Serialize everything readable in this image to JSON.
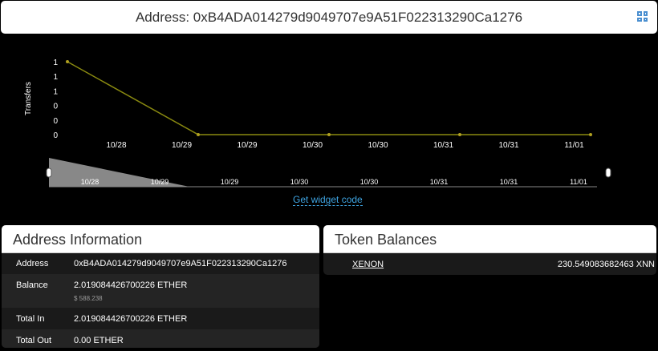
{
  "header": {
    "title": "Address: 0xB4ADA014279d9049707e9A51F022313290Ca1276",
    "qr_icon": "qr-code-icon"
  },
  "chart_data": {
    "type": "line",
    "ylabel": "Transfers",
    "ytick_labels": [
      "0",
      "0",
      "0",
      "1",
      "1",
      "1"
    ],
    "yticks": [
      0,
      0.2,
      0.4,
      0.6,
      0.8,
      1
    ],
    "ylim": [
      0,
      1
    ],
    "points": [
      {
        "x": "10/28",
        "y": 1
      },
      {
        "x": "10/29",
        "y": 0
      },
      {
        "x": "10/30",
        "y": 0
      },
      {
        "x": "10/31",
        "y": 0
      },
      {
        "x": "11/01",
        "y": 0
      }
    ],
    "xtick_labels": [
      "10/28",
      "10/29",
      "10/29",
      "10/30",
      "10/30",
      "10/31",
      "10/31",
      "11/01"
    ],
    "line_color": "#8a8a10",
    "navigator_labels": [
      "10/28",
      "10/29",
      "10/29",
      "10/30",
      "10/30",
      "10/31",
      "10/31",
      "11/01"
    ]
  },
  "widget_link": "Get widget code",
  "address_info": {
    "title": "Address Information",
    "rows": [
      {
        "label": "Address",
        "value": "0xB4ADA014279d9049707e9A51F022313290Ca1276"
      },
      {
        "label": "Balance",
        "value": "2.019084426700226 ETHER",
        "sub": "$ 588.238"
      },
      {
        "label": "Total In",
        "value": "2.019084426700226 ETHER"
      },
      {
        "label": "Total Out",
        "value": "0.00 ETHER"
      }
    ]
  },
  "token_balances": {
    "title": "Token Balances",
    "items": [
      {
        "name": "XENON",
        "amount": "230.549083682463 XNN"
      }
    ]
  }
}
